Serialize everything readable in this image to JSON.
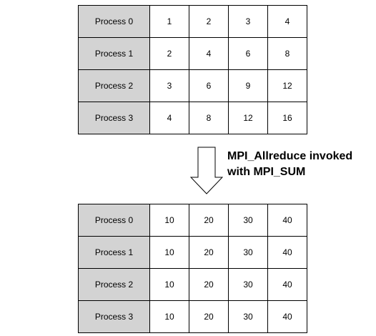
{
  "before_table": {
    "rows": [
      {
        "label": "Process 0",
        "values": [
          "1",
          "2",
          "3",
          "4"
        ]
      },
      {
        "label": "Process 1",
        "values": [
          "2",
          "4",
          "6",
          "8"
        ]
      },
      {
        "label": "Process 2",
        "values": [
          "3",
          "6",
          "9",
          "12"
        ]
      },
      {
        "label": "Process 3",
        "values": [
          "4",
          "8",
          "12",
          "16"
        ]
      }
    ]
  },
  "operation": {
    "line1": "MPI_Allreduce invoked",
    "line2": "with MPI_SUM"
  },
  "after_table": {
    "rows": [
      {
        "label": "Process 0",
        "values": [
          "10",
          "20",
          "30",
          "40"
        ]
      },
      {
        "label": "Process 1",
        "values": [
          "10",
          "20",
          "30",
          "40"
        ]
      },
      {
        "label": "Process 2",
        "values": [
          "10",
          "20",
          "30",
          "40"
        ]
      },
      {
        "label": "Process 3",
        "values": [
          "10",
          "20",
          "30",
          "40"
        ]
      }
    ]
  },
  "colors": {
    "label_cell_fill": "#d3d3d3",
    "value_cell_fill": "#ffffff",
    "border": "#000000"
  },
  "icons": {
    "arrow": "down-arrow-icon"
  }
}
